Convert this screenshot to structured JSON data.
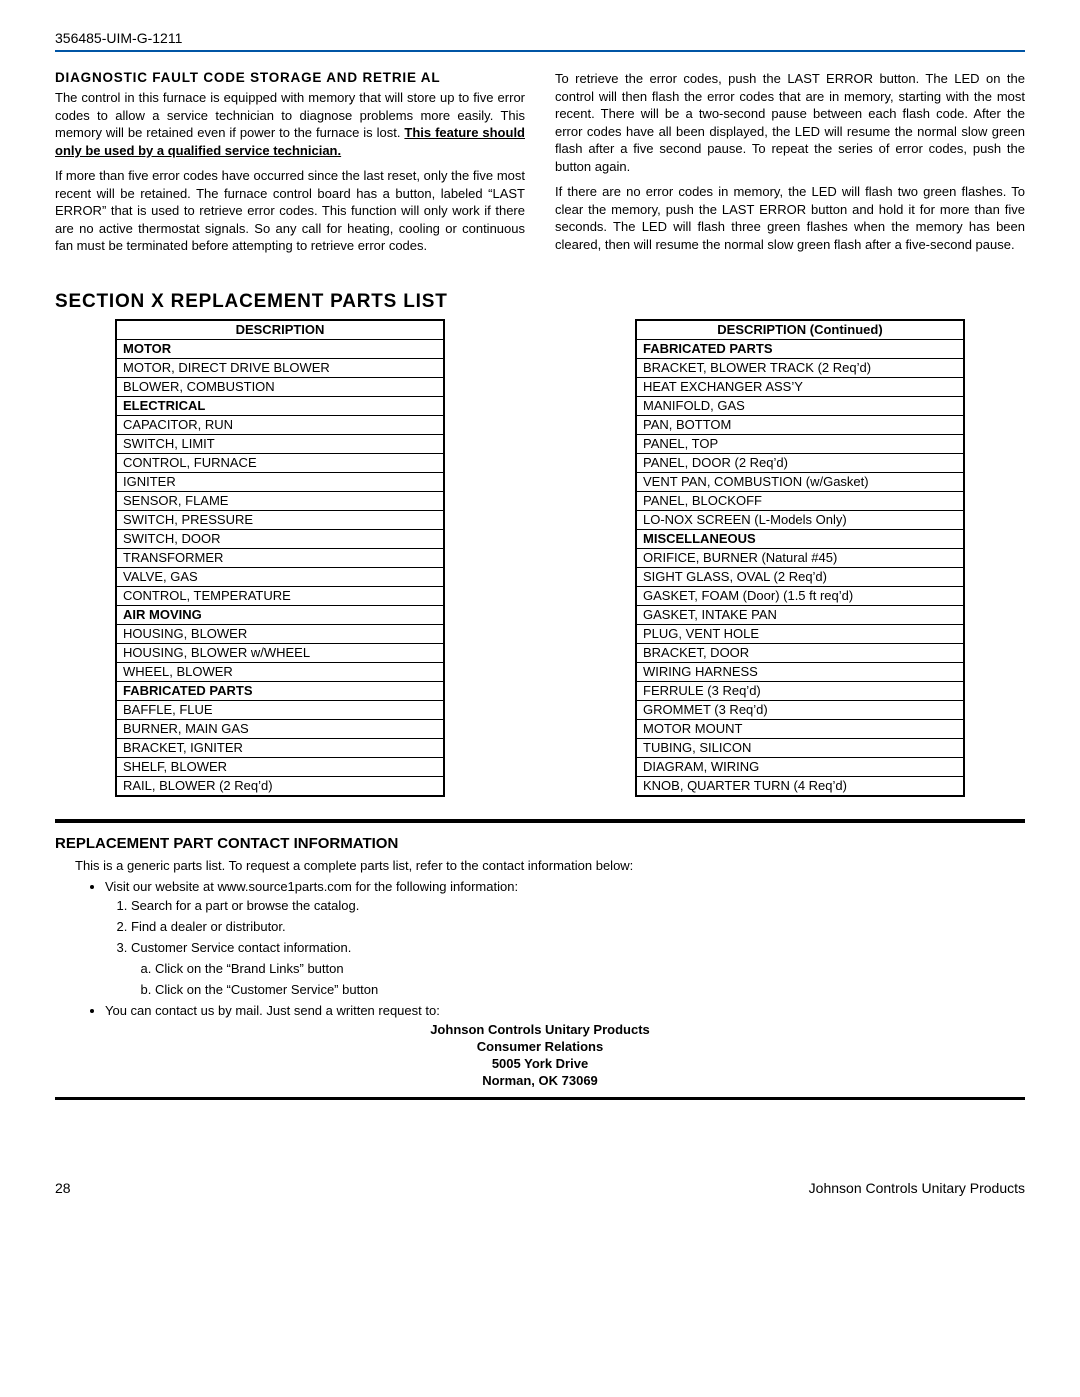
{
  "header": {
    "doc_id": "356485-UIM-G-1211"
  },
  "diag": {
    "heading": "DIAGNOSTIC FAULT CODE STORAGE AND RETRIE  AL",
    "p1_a": "The control in this furnace is equipped with memory that will store up to five error codes to allow a service technician to diagnose problems more easily. This memory will be retained even if power to the furnace is lost. ",
    "p1_b": "This feature should only be used by a qualified service technician.",
    "p2": "If more than five error codes have occurred since the last reset, only the five most recent will be retained. The furnace control board has a button, labeled “LAST ERROR” that is used to retrieve error codes. This function will only work if there are no active thermostat signals. So any call for heating, cooling or continuous fan must be terminated before attempting to retrieve error codes.",
    "p3": "To retrieve the error codes, push the LAST ERROR button. The LED on the control will then flash the error codes that are in memory, starting with the most recent. There will be a two-second pause between each flash code. After the error codes have all been displayed, the LED will resume the normal slow green flash after a five second pause. To repeat the series of error codes, push the button again.",
    "p4": "If there are no error codes in memory, the LED will flash two green flashes. To clear the memory, push the LAST ERROR button and hold it for more than five seconds. The LED will flash three green flashes when the memory has been cleared, then will resume the normal slow green flash after a five-second pause."
  },
  "section_title": "SECTION X   REPLACEMENT PARTS LIST",
  "table_left": {
    "header": "DESCRIPTION",
    "rows": [
      {
        "t": "MOTOR",
        "cat": true
      },
      {
        "t": "MOTOR, DIRECT DRIVE BLOWER"
      },
      {
        "t": "BLOWER, COMBUSTION"
      },
      {
        "t": "ELECTRICAL",
        "cat": true
      },
      {
        "t": "CAPACITOR, RUN"
      },
      {
        "t": "SWITCH, LIMIT"
      },
      {
        "t": "CONTROL, FURNACE"
      },
      {
        "t": "IGNITER"
      },
      {
        "t": "SENSOR, FLAME"
      },
      {
        "t": "SWITCH, PRESSURE"
      },
      {
        "t": "SWITCH, DOOR"
      },
      {
        "t": "TRANSFORMER"
      },
      {
        "t": "VALVE, GAS"
      },
      {
        "t": "CONTROL, TEMPERATURE"
      },
      {
        "t": "AIR MOVING",
        "cat": true
      },
      {
        "t": "HOUSING, BLOWER"
      },
      {
        "t": "HOUSING, BLOWER w/WHEEL"
      },
      {
        "t": "WHEEL, BLOWER"
      },
      {
        "t": "FABRICATED PARTS",
        "cat": true
      },
      {
        "t": "BAFFLE, FLUE"
      },
      {
        "t": "BURNER, MAIN GAS"
      },
      {
        "t": "BRACKET, IGNITER"
      },
      {
        "t": "SHELF, BLOWER"
      },
      {
        "t": "RAIL, BLOWER (2 Req’d)"
      }
    ]
  },
  "table_right": {
    "header": "DESCRIPTION (Continued)",
    "rows": [
      {
        "t": "FABRICATED PARTS",
        "cat": true
      },
      {
        "t": "BRACKET, BLOWER TRACK (2 Req’d)"
      },
      {
        "t": "HEAT EXCHANGER ASS’Y"
      },
      {
        "t": "MANIFOLD, GAS"
      },
      {
        "t": "PAN, BOTTOM"
      },
      {
        "t": "PANEL, TOP"
      },
      {
        "t": "PANEL, DOOR (2 Req’d)"
      },
      {
        "t": "VENT PAN, COMBUSTION (w/Gasket)"
      },
      {
        "t": "PANEL, BLOCKOFF"
      },
      {
        "t": "LO-NOX SCREEN (L-Models Only)"
      },
      {
        "t": "MISCELLANEOUS",
        "cat": true
      },
      {
        "t": "ORIFICE, BURNER (Natural #45)"
      },
      {
        "t": "SIGHT GLASS, OVAL (2 Req’d)"
      },
      {
        "t": "GASKET, FOAM (Door) (1.5 ft req’d)"
      },
      {
        "t": "GASKET, INTAKE PAN"
      },
      {
        "t": "PLUG, VENT HOLE"
      },
      {
        "t": "BRACKET, DOOR"
      },
      {
        "t": "WIRING HARNESS"
      },
      {
        "t": "FERRULE (3 Req’d)"
      },
      {
        "t": "GROMMET (3 Req’d)"
      },
      {
        "t": "MOTOR MOUNT"
      },
      {
        "t": "TUBING, SILICON"
      },
      {
        "t": "DIAGRAM, WIRING"
      },
      {
        "t": "KNOB, QUARTER TURN (4 Req’d)"
      }
    ]
  },
  "contact": {
    "heading": "REPLACEMENT PART CONTACT INFORMATION",
    "intro": "This is a generic parts list. To request a complete parts list, refer to the contact information below:",
    "b1": "Visit our website at www.source1parts.com for the following information:",
    "n1": "Search for a part or browse the catalog.",
    "n2": "Find a dealer or distributor.",
    "n3": "Customer Service contact information.",
    "a1": "Click on the “Brand Links” button",
    "a2": "Click on the “Customer Service” button",
    "b2": "You can contact us by mail. Just send a written request to:",
    "addr1": "Johnson Controls Unitary Products",
    "addr2": "Consumer Relations",
    "addr3": "5005 York Drive",
    "addr4": "Norman, OK 73069"
  },
  "footer": {
    "page": "28",
    "company": "Johnson Controls Unitary Products"
  }
}
